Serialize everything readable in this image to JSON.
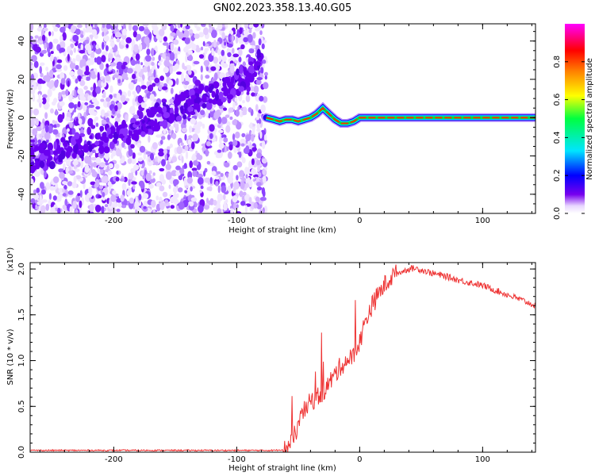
{
  "title": "GN02.2023.358.13.40.G05",
  "chart_data": [
    {
      "type": "heatmap",
      "panel": "spectrogram",
      "xlabel": "Height of straight line (km)",
      "ylabel": "Frequency (Hz)",
      "xlim": [
        -268,
        143
      ],
      "ylim": [
        -50,
        49
      ],
      "xticks": [
        -200,
        -100,
        0,
        100
      ],
      "yticks": [
        -40,
        -20,
        0,
        20,
        40
      ],
      "colorbar": {
        "label": "Normalized spectral amplitude",
        "range": [
          0,
          1
        ],
        "ticks": [
          "0.0",
          "0.2",
          "0.4",
          "0.6",
          "0.8"
        ],
        "colormap": [
          "#ffffff",
          "#e8d6ff",
          "#7700ee",
          "#0000ff",
          "#00e5ff",
          "#00ff40",
          "#ffff00",
          "#ff8000",
          "#ff0000",
          "#ff00ff"
        ]
      },
      "noise_region_x": [
        -268,
        -76
      ],
      "trend_line": {
        "x": [
          -268,
          -200,
          -150,
          -100,
          -80
        ],
        "y": [
          -22,
          -10,
          4,
          18,
          30
        ]
      },
      "signal_track": {
        "x": [
          -76,
          -70,
          -65,
          -60,
          -55,
          -50,
          -45,
          -40,
          -35,
          -30,
          -25,
          -20,
          -15,
          -10,
          -5,
          0,
          10,
          50,
          100,
          143
        ],
        "y": [
          0,
          -1,
          -2,
          -1,
          -1,
          -2,
          -1,
          0,
          2,
          5,
          2,
          -1,
          -3,
          -3,
          -2,
          0,
          0,
          0,
          0,
          0
        ]
      }
    },
    {
      "type": "line",
      "panel": "snr",
      "xlabel": "Height of straight line (km)",
      "ylabel": "SNR (10 * v/v)",
      "y_multiplier": "(x10⁴)",
      "xlim": [
        -268,
        143
      ],
      "ylim": [
        0,
        2.07
      ],
      "xticks": [
        -200,
        -100,
        0,
        100
      ],
      "yticks": [
        "0.0",
        "0.5",
        "1.0",
        "1.5",
        "2.0"
      ],
      "color": "#ee3333",
      "series": [
        {
          "x": [
            -268,
            -200,
            -100,
            -70,
            -60,
            -55,
            -50,
            -45,
            -40,
            -35,
            -30,
            -25,
            -20,
            -15,
            -10,
            -5,
            0,
            5,
            10,
            15,
            20,
            25,
            30,
            40,
            45,
            50,
            60,
            70,
            80,
            90,
            100,
            110,
            120,
            130,
            143
          ],
          "values": [
            0.02,
            0.02,
            0.02,
            0.02,
            0.03,
            0.1,
            0.3,
            0.45,
            0.55,
            0.6,
            0.65,
            0.75,
            0.85,
            0.95,
            1.0,
            1.05,
            1.2,
            1.45,
            1.6,
            1.72,
            1.82,
            1.9,
            1.95,
            2.0,
            2.01,
            1.99,
            1.95,
            1.92,
            1.88,
            1.85,
            1.82,
            1.77,
            1.72,
            1.67,
            1.6
          ]
        }
      ]
    }
  ]
}
